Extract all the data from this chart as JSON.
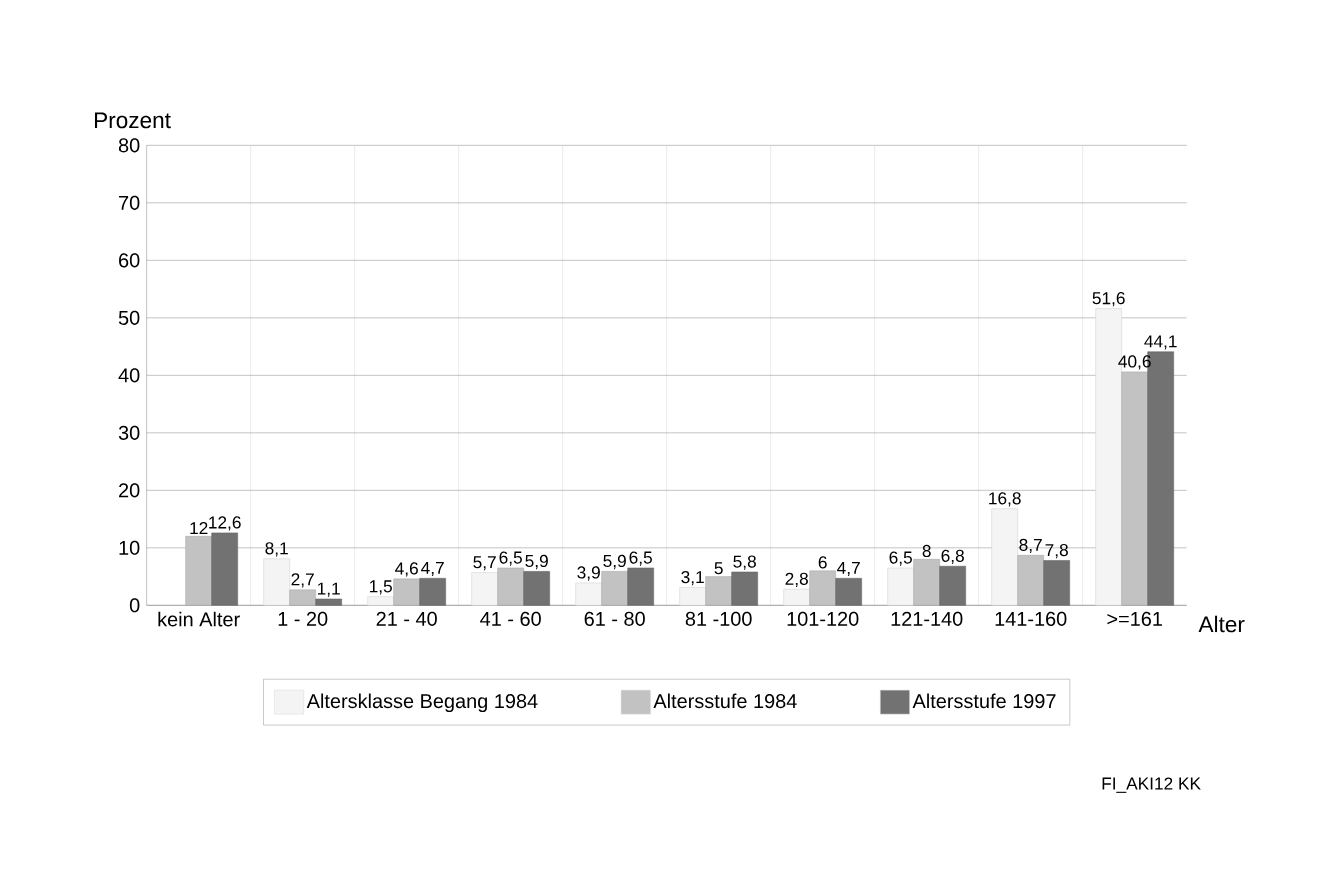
{
  "chart_data": {
    "type": "bar",
    "xlabel": "Alter",
    "ylabel": "Prozent",
    "categories": [
      "kein Alter",
      "1 - 20",
      "21 - 40",
      "41 - 60",
      "61 - 80",
      "81 -100",
      "101-120",
      "121-140",
      "141-160",
      ">=161"
    ],
    "series": [
      {
        "name": "Altersklasse Begang 1984",
        "color": "#f4f4f4",
        "values": [
          null,
          8.1,
          1.5,
          5.7,
          3.9,
          3.1,
          2.8,
          6.5,
          16.8,
          51.6
        ],
        "value_labels": [
          null,
          "8,1",
          "1,5",
          "5,7",
          "3,9",
          "3,1",
          "2,8",
          "6,5",
          "16,8",
          "51,6"
        ]
      },
      {
        "name": "Altersstufe 1984",
        "color": "#c2c2c2",
        "values": [
          12,
          2.7,
          4.6,
          6.5,
          5.9,
          5,
          6,
          8,
          8.7,
          40.6
        ],
        "value_labels": [
          "12",
          "2,7",
          "4,6",
          "6,5",
          "5,9",
          "5",
          "6",
          "8",
          "8,7",
          "40,6"
        ]
      },
      {
        "name": "Altersstufe 1997",
        "color": "#727272",
        "values": [
          12.6,
          1.1,
          4.7,
          5.9,
          6.5,
          5.8,
          4.7,
          6.8,
          7.8,
          44.1
        ],
        "value_labels": [
          "12,6",
          "1,1",
          "4,7",
          "5,9",
          "6,5",
          "5,8",
          "4,7",
          "6,8",
          "7,8",
          "44,1"
        ]
      }
    ],
    "ylim": [
      0,
      80
    ],
    "yticks": [
      0,
      10,
      20,
      30,
      40,
      50,
      60,
      70,
      80
    ],
    "grid": true,
    "legend": "bottom",
    "annotations": [
      "FI_AKI12 KK"
    ]
  }
}
